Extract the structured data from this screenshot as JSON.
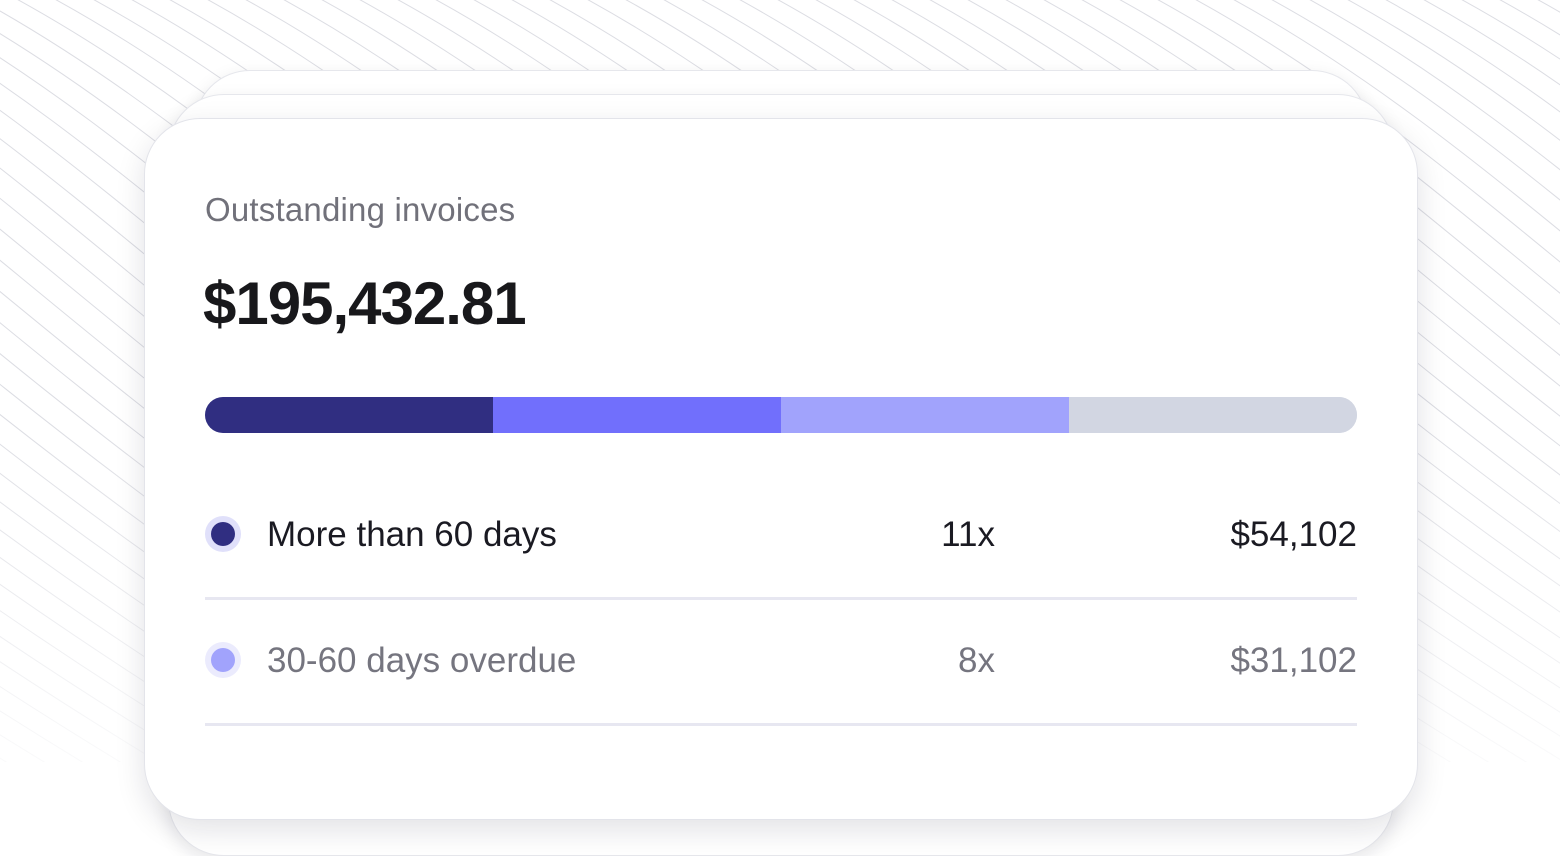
{
  "widget": {
    "title": "Outstanding invoices",
    "total": "$195,432.81",
    "bar_segments": [
      {
        "share": 0.25,
        "color": "#302e81"
      },
      {
        "share": 0.25,
        "color": "#716ffc"
      },
      {
        "share": 0.25,
        "color": "#a1a3fc"
      },
      {
        "share": 0.25,
        "color": "#d2d6e2"
      }
    ],
    "rows": [
      {
        "label": "More than 60 days",
        "count": "11x",
        "amount": "$54,102",
        "dot_color": "#302e81",
        "dot_ring": "#e0e0fa"
      },
      {
        "label": "30-60 days overdue",
        "count": "8x",
        "amount": "$31,102",
        "dot_color": "#a1a3fc",
        "dot_ring": "#ebebfd"
      }
    ]
  },
  "colors": {
    "background": "#ffffff",
    "card_border": "#e3e4ea",
    "divider": "#e7e7f1",
    "title_text": "#71717a",
    "primary_text": "#18181b"
  }
}
